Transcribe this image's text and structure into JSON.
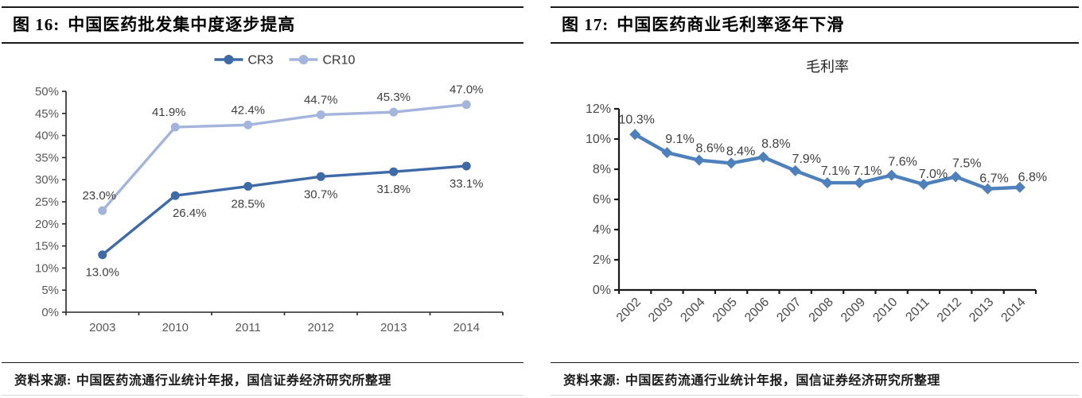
{
  "panels": [
    {
      "title_prefix": "图 16:",
      "title": "中国医药批发集中度逐步提高",
      "source_label": "资料来源:",
      "source": "中国医药流通行业统计年报，国信证券经济研究所整理"
    },
    {
      "title_prefix": "图 17:",
      "title": "中国医药商业毛利率逐年下滑",
      "source_label": "资料来源:",
      "source": "中国医药流通行业统计年报，国信证券经济研究所整理"
    }
  ],
  "chart_data": [
    {
      "type": "line",
      "title": "",
      "categories": [
        "2003",
        "2010",
        "2011",
        "2012",
        "2013",
        "2014"
      ],
      "series": [
        {
          "name": "CR3",
          "values": [
            13.0,
            26.4,
            28.5,
            30.7,
            31.8,
            33.1
          ],
          "labels": [
            "13.0%",
            "26.4%",
            "28.5%",
            "30.7%",
            "31.8%",
            "33.1%"
          ],
          "color": "#3E6BA8",
          "marker": "circle",
          "label_position": "below",
          "label_dx": [
            0,
            18,
            0,
            0,
            0,
            0
          ]
        },
        {
          "name": "CR10",
          "values": [
            23.0,
            41.9,
            42.4,
            44.7,
            45.3,
            47.0
          ],
          "labels": [
            "23.0%",
            "41.9%",
            "42.4%",
            "44.7%",
            "45.3%",
            "47.0%"
          ],
          "color": "#A3B5DC",
          "marker": "circle",
          "label_position": "above",
          "label_dx": [
            -4,
            -8,
            0,
            0,
            0,
            0
          ]
        }
      ],
      "ylim": [
        0,
        50
      ],
      "ytick_step": 5,
      "ytick_suffix": "%",
      "legend_position": "top",
      "x_label_rotation": 0,
      "grid": false
    },
    {
      "type": "line",
      "title": "毛利率",
      "categories": [
        "2002",
        "2003",
        "2004",
        "2005",
        "2006",
        "2007",
        "2008",
        "2009",
        "2010",
        "2011",
        "2012",
        "2013",
        "2014"
      ],
      "series": [
        {
          "name": "毛利率",
          "values": [
            10.3,
            9.1,
            8.6,
            8.4,
            8.8,
            7.9,
            7.1,
            7.1,
            7.6,
            7.0,
            7.5,
            6.7,
            6.8
          ],
          "labels": [
            "10.3%",
            "9.1%",
            "8.6%",
            "8.4%",
            "8.8%",
            "7.9%",
            "7.1%",
            "7.1%",
            "7.6%",
            "7.0%",
            "7.5%",
            "6.7%",
            "6.8%"
          ],
          "color": "#4E80BC",
          "marker": "diamond",
          "label_position": "above",
          "label_dx": [
            2,
            16,
            14,
            12,
            16,
            14,
            10,
            10,
            14,
            12,
            14,
            8,
            16
          ],
          "label_dy": [
            -14,
            -12,
            -10,
            -10,
            -12,
            -10,
            -10,
            -10,
            -12,
            -8,
            -12,
            -8,
            -8
          ]
        }
      ],
      "ylim": [
        0,
        12
      ],
      "ytick_step": 2,
      "ytick_suffix": "%",
      "legend_position": "none",
      "x_label_rotation": -45,
      "grid": false
    }
  ]
}
